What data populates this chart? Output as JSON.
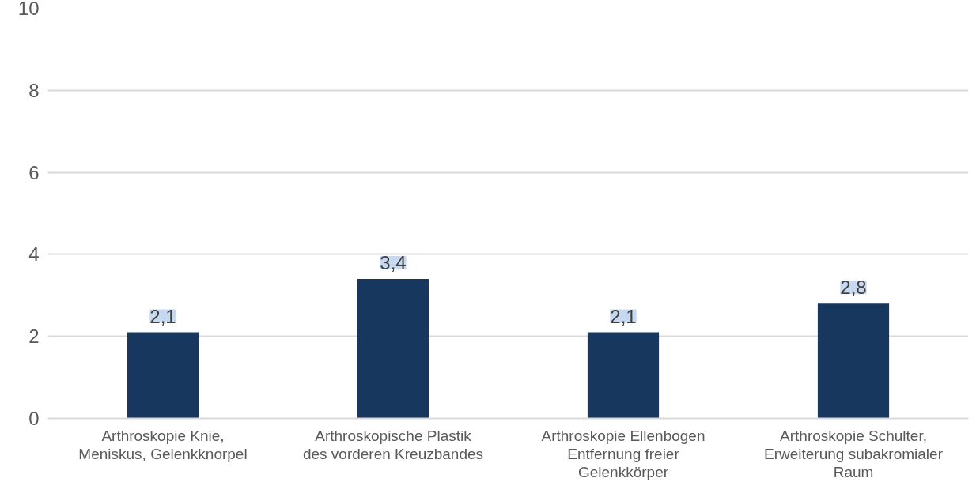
{
  "chart_data": {
    "type": "bar",
    "categories": [
      "Arthroskopie Knie, Meniskus, Gelenkknorpel",
      "Arthroskopische Plastik des vorderen Kreuzbandes",
      "Arthroskopie Ellenbogen Entfernung freier Gelenkkörper",
      "Arthroskopie Schulter, Erweiterung subakromialer Raum"
    ],
    "values": [
      2.1,
      3.4,
      2.1,
      2.8
    ],
    "value_labels": [
      "2,1",
      "3,4",
      "2,1",
      "2,8"
    ],
    "color": "#17375e",
    "ylim": [
      0,
      10
    ],
    "yticks": [
      0,
      2,
      4,
      6,
      8,
      10
    ],
    "grid": "y"
  }
}
